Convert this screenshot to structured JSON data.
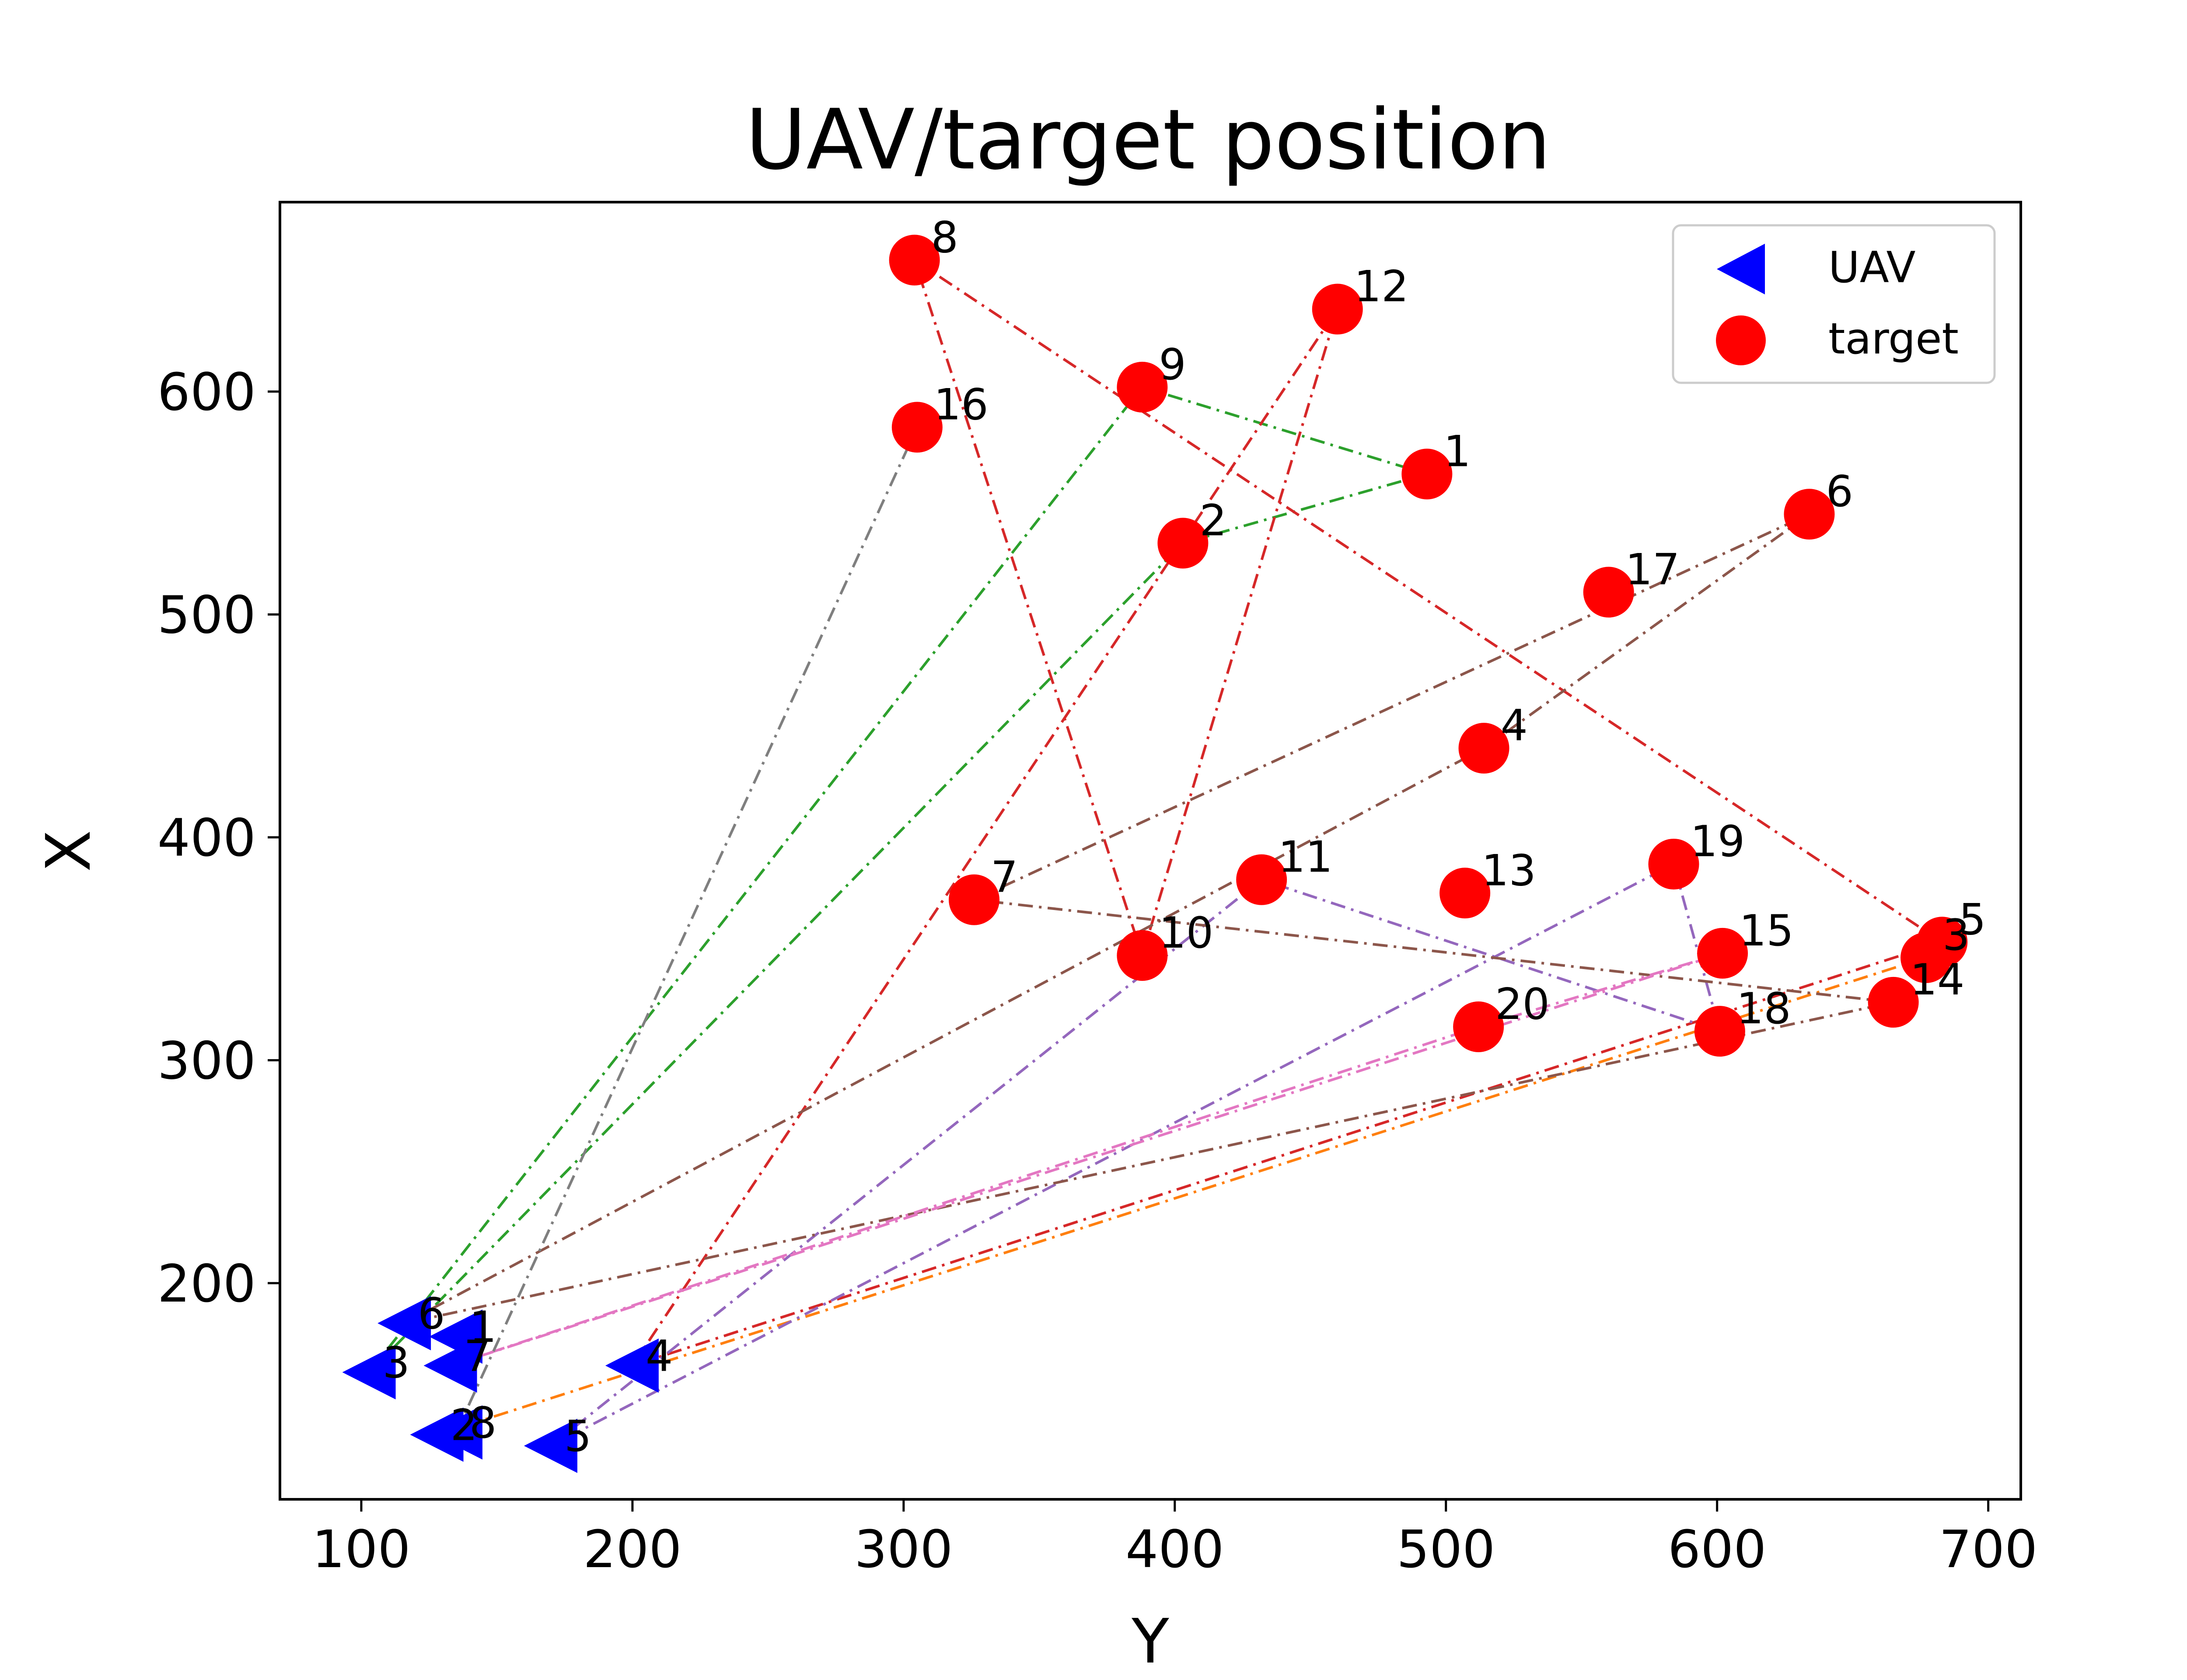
{
  "chart_data": {
    "type": "scatter",
    "title": "UAV/target position",
    "xlabel": "Y",
    "ylabel": "X",
    "xlim": [
      70,
      712
    ],
    "ylim": [
      103,
      685
    ],
    "xticks": [
      100,
      200,
      300,
      400,
      500,
      600,
      700
    ],
    "yticks": [
      200,
      300,
      400,
      500,
      600
    ],
    "grid": false,
    "legend": {
      "placement": "top-right",
      "entries": [
        {
          "name": "UAV",
          "marker": "triangle-left",
          "color": "#0000ff"
        },
        {
          "name": "target",
          "marker": "circle",
          "color": "#ff0000"
        }
      ]
    },
    "series": [
      {
        "name": "UAV",
        "marker": "triangle-left",
        "color": "#0000ff",
        "points": [
          {
            "label": "1",
            "x": 135,
            "y": 176
          },
          {
            "label": "2",
            "x": 128,
            "y": 132
          },
          {
            "label": "3",
            "x": 103,
            "y": 160
          },
          {
            "label": "4",
            "x": 200,
            "y": 163
          },
          {
            "label": "5",
            "x": 170,
            "y": 127
          },
          {
            "label": "6",
            "x": 116,
            "y": 182
          },
          {
            "label": "7",
            "x": 133,
            "y": 163
          },
          {
            "label": "8",
            "x": 135,
            "y": 133
          }
        ]
      },
      {
        "name": "target",
        "marker": "circle",
        "color": "#ff0000",
        "points": [
          {
            "label": "1",
            "x": 493,
            "y": 563
          },
          {
            "label": "2",
            "x": 403,
            "y": 532
          },
          {
            "label": "3",
            "x": 677,
            "y": 346
          },
          {
            "label": "4",
            "x": 514,
            "y": 440
          },
          {
            "label": "5",
            "x": 683,
            "y": 353
          },
          {
            "label": "6",
            "x": 634,
            "y": 545
          },
          {
            "label": "7",
            "x": 326,
            "y": 372
          },
          {
            "label": "8",
            "x": 304,
            "y": 659
          },
          {
            "label": "9",
            "x": 388,
            "y": 602
          },
          {
            "label": "10",
            "x": 388,
            "y": 347
          },
          {
            "label": "11",
            "x": 432,
            "y": 381
          },
          {
            "label": "12",
            "x": 460,
            "y": 637
          },
          {
            "label": "13",
            "x": 507,
            "y": 375
          },
          {
            "label": "14",
            "x": 665,
            "y": 326
          },
          {
            "label": "15",
            "x": 602,
            "y": 348
          },
          {
            "label": "16",
            "x": 305,
            "y": 584
          },
          {
            "label": "17",
            "x": 560,
            "y": 510
          },
          {
            "label": "18",
            "x": 601,
            "y": 313
          },
          {
            "label": "19",
            "x": 584,
            "y": 388
          },
          {
            "label": "20",
            "x": 512,
            "y": 315
          }
        ]
      }
    ],
    "paths": [
      {
        "uav": "2",
        "color": "#ff7f0e",
        "style": "dash-dot",
        "route": [
          [
            128,
            132
          ],
          [
            677,
            346
          ]
        ]
      },
      {
        "uav": "3",
        "color": "#2ca02c",
        "style": "dash-dot",
        "route": [
          [
            103,
            160
          ],
          [
            388,
            602
          ],
          [
            493,
            563
          ],
          [
            403,
            532
          ],
          [
            103,
            160
          ]
        ]
      },
      {
        "uav": "4",
        "color": "#d62728",
        "style": "dash-dot",
        "route": [
          [
            200,
            163
          ],
          [
            460,
            637
          ],
          [
            388,
            347
          ],
          [
            304,
            659
          ],
          [
            683,
            353
          ],
          [
            200,
            163
          ]
        ]
      },
      {
        "uav": "5",
        "color": "#9467bd",
        "style": "dash-dot",
        "route": [
          [
            170,
            127
          ],
          [
            432,
            381
          ],
          [
            601,
            313
          ],
          [
            584,
            388
          ],
          [
            170,
            127
          ]
        ]
      },
      {
        "uav": "6",
        "color": "#8c564b",
        "style": "dash-dot",
        "route": [
          [
            116,
            182
          ],
          [
            514,
            440
          ],
          [
            634,
            545
          ],
          [
            326,
            372
          ],
          [
            665,
            326
          ],
          [
            116,
            182
          ]
        ]
      },
      {
        "uav": "7",
        "color": "#e377c2",
        "style": "dash-dot",
        "route": [
          [
            133,
            163
          ],
          [
            602,
            348
          ],
          [
            512,
            315
          ],
          [
            133,
            163
          ]
        ]
      },
      {
        "uav": "8",
        "color": "#7f7f7f",
        "style": "dash-dot",
        "route": [
          [
            135,
            133
          ],
          [
            305,
            584
          ]
        ]
      }
    ]
  }
}
